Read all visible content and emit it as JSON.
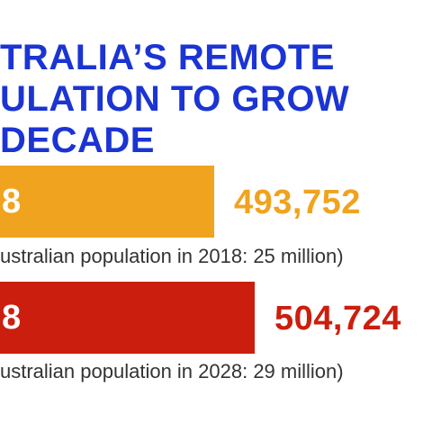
{
  "chart_data": {
    "type": "bar",
    "title_lines": [
      "TRALIA’S REMOTE",
      "ULATION TO GROW",
      "DECADE"
    ],
    "categories": [
      "8",
      "8"
    ],
    "series": [
      {
        "values": [
          493752,
          504724
        ],
        "value_labels": [
          "493,752",
          "504,724"
        ],
        "colors": [
          "#f0a31e",
          "#cc1e0e"
        ]
      }
    ],
    "notes": [
      "ustralian population in 2018: 25 million)",
      "ustralian population in 2028: 29 million)"
    ]
  },
  "colors": {
    "title": "#1b34d4",
    "bar_2018": "#f0a31e",
    "bar_2028": "#cc1e0e"
  }
}
